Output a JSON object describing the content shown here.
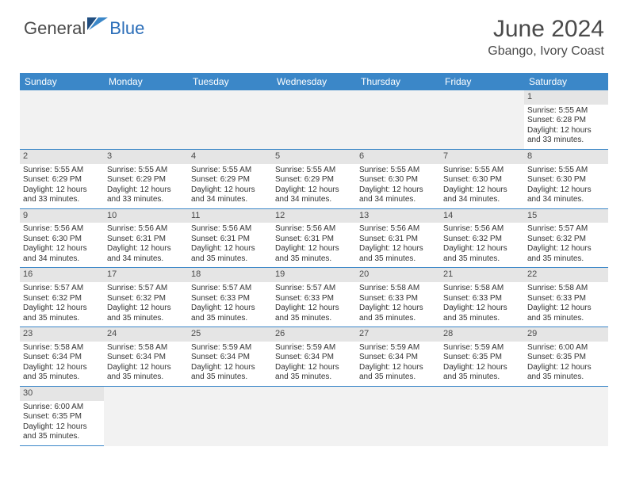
{
  "logo": {
    "general": "General",
    "blue": "Blue"
  },
  "title": {
    "month": "June 2024",
    "location": "Gbango, Ivory Coast"
  },
  "colors": {
    "header_bg": "#3b87c8",
    "header_text": "#ffffff",
    "daynum_bg": "#e5e5e5",
    "border": "#3b87c8",
    "text": "#333333",
    "title_text": "#4a4a4a"
  },
  "dayheaders": [
    "Sunday",
    "Monday",
    "Tuesday",
    "Wednesday",
    "Thursday",
    "Friday",
    "Saturday"
  ],
  "weeks": [
    [
      null,
      null,
      null,
      null,
      null,
      null,
      {
        "n": "1",
        "sr": "5:55 AM",
        "ss": "6:28 PM",
        "dl": "12 hours and 33 minutes."
      }
    ],
    [
      {
        "n": "2",
        "sr": "5:55 AM",
        "ss": "6:29 PM",
        "dl": "12 hours and 33 minutes."
      },
      {
        "n": "3",
        "sr": "5:55 AM",
        "ss": "6:29 PM",
        "dl": "12 hours and 33 minutes."
      },
      {
        "n": "4",
        "sr": "5:55 AM",
        "ss": "6:29 PM",
        "dl": "12 hours and 34 minutes."
      },
      {
        "n": "5",
        "sr": "5:55 AM",
        "ss": "6:29 PM",
        "dl": "12 hours and 34 minutes."
      },
      {
        "n": "6",
        "sr": "5:55 AM",
        "ss": "6:30 PM",
        "dl": "12 hours and 34 minutes."
      },
      {
        "n": "7",
        "sr": "5:55 AM",
        "ss": "6:30 PM",
        "dl": "12 hours and 34 minutes."
      },
      {
        "n": "8",
        "sr": "5:55 AM",
        "ss": "6:30 PM",
        "dl": "12 hours and 34 minutes."
      }
    ],
    [
      {
        "n": "9",
        "sr": "5:56 AM",
        "ss": "6:30 PM",
        "dl": "12 hours and 34 minutes."
      },
      {
        "n": "10",
        "sr": "5:56 AM",
        "ss": "6:31 PM",
        "dl": "12 hours and 34 minutes."
      },
      {
        "n": "11",
        "sr": "5:56 AM",
        "ss": "6:31 PM",
        "dl": "12 hours and 35 minutes."
      },
      {
        "n": "12",
        "sr": "5:56 AM",
        "ss": "6:31 PM",
        "dl": "12 hours and 35 minutes."
      },
      {
        "n": "13",
        "sr": "5:56 AM",
        "ss": "6:31 PM",
        "dl": "12 hours and 35 minutes."
      },
      {
        "n": "14",
        "sr": "5:56 AM",
        "ss": "6:32 PM",
        "dl": "12 hours and 35 minutes."
      },
      {
        "n": "15",
        "sr": "5:57 AM",
        "ss": "6:32 PM",
        "dl": "12 hours and 35 minutes."
      }
    ],
    [
      {
        "n": "16",
        "sr": "5:57 AM",
        "ss": "6:32 PM",
        "dl": "12 hours and 35 minutes."
      },
      {
        "n": "17",
        "sr": "5:57 AM",
        "ss": "6:32 PM",
        "dl": "12 hours and 35 minutes."
      },
      {
        "n": "18",
        "sr": "5:57 AM",
        "ss": "6:33 PM",
        "dl": "12 hours and 35 minutes."
      },
      {
        "n": "19",
        "sr": "5:57 AM",
        "ss": "6:33 PM",
        "dl": "12 hours and 35 minutes."
      },
      {
        "n": "20",
        "sr": "5:58 AM",
        "ss": "6:33 PM",
        "dl": "12 hours and 35 minutes."
      },
      {
        "n": "21",
        "sr": "5:58 AM",
        "ss": "6:33 PM",
        "dl": "12 hours and 35 minutes."
      },
      {
        "n": "22",
        "sr": "5:58 AM",
        "ss": "6:33 PM",
        "dl": "12 hours and 35 minutes."
      }
    ],
    [
      {
        "n": "23",
        "sr": "5:58 AM",
        "ss": "6:34 PM",
        "dl": "12 hours and 35 minutes."
      },
      {
        "n": "24",
        "sr": "5:58 AM",
        "ss": "6:34 PM",
        "dl": "12 hours and 35 minutes."
      },
      {
        "n": "25",
        "sr": "5:59 AM",
        "ss": "6:34 PM",
        "dl": "12 hours and 35 minutes."
      },
      {
        "n": "26",
        "sr": "5:59 AM",
        "ss": "6:34 PM",
        "dl": "12 hours and 35 minutes."
      },
      {
        "n": "27",
        "sr": "5:59 AM",
        "ss": "6:34 PM",
        "dl": "12 hours and 35 minutes."
      },
      {
        "n": "28",
        "sr": "5:59 AM",
        "ss": "6:35 PM",
        "dl": "12 hours and 35 minutes."
      },
      {
        "n": "29",
        "sr": "6:00 AM",
        "ss": "6:35 PM",
        "dl": "12 hours and 35 minutes."
      }
    ],
    [
      {
        "n": "30",
        "sr": "6:00 AM",
        "ss": "6:35 PM",
        "dl": "12 hours and 35 minutes."
      },
      null,
      null,
      null,
      null,
      null,
      null
    ]
  ],
  "labels": {
    "sunrise": "Sunrise: ",
    "sunset": "Sunset: ",
    "daylight": "Daylight: "
  }
}
